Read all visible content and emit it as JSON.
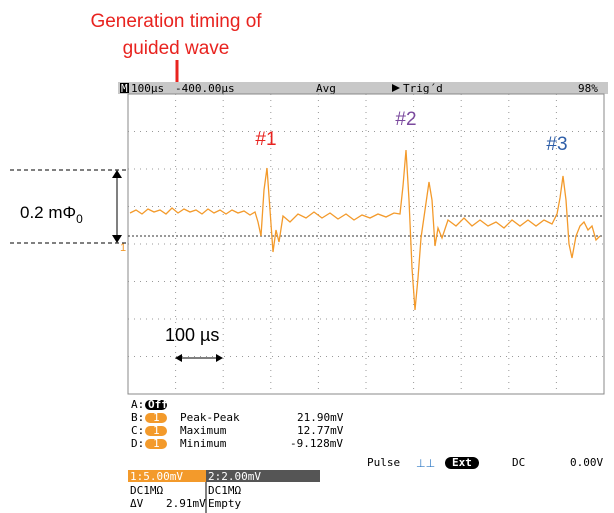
{
  "annotation": {
    "title_lines": [
      "Generation timing of",
      "guided wave"
    ],
    "peaks": [
      "#1",
      "#2",
      "#3"
    ],
    "amplitude": {
      "text": "0.2 mΦ",
      "subscript": "0"
    },
    "time_scale": "100 µs"
  },
  "scope": {
    "header": {
      "mode": "M",
      "timebase": "100µs",
      "delay": "-400.00µs",
      "acquisition": "Avg",
      "trigger": "Trig´d",
      "battery": "98%"
    },
    "channel_marker": "1",
    "measurements": [
      {
        "slot": "A:",
        "state": "Off"
      },
      {
        "slot": "B:",
        "channel": "1",
        "name": "Peak-Peak",
        "value": "21.90mV"
      },
      {
        "slot": "C:",
        "channel": "1",
        "name": "Maximum",
        "value": "12.77mV"
      },
      {
        "slot": "D:",
        "channel": "1",
        "name": "Minimum",
        "value": "-9.128mV"
      }
    ],
    "trigger_line": {
      "type": "Pulse",
      "source": "Ext",
      "coupling": "DC",
      "level": "0.00V"
    },
    "channels": [
      {
        "scale": "1:5.00mV",
        "coupling": "DC1MΩ",
        "delta_label": "ΔV",
        "delta_value": "2.91mV"
      },
      {
        "scale": "2:2.00mV",
        "coupling": "DC1MΩ",
        "state": "Empty"
      }
    ]
  }
}
